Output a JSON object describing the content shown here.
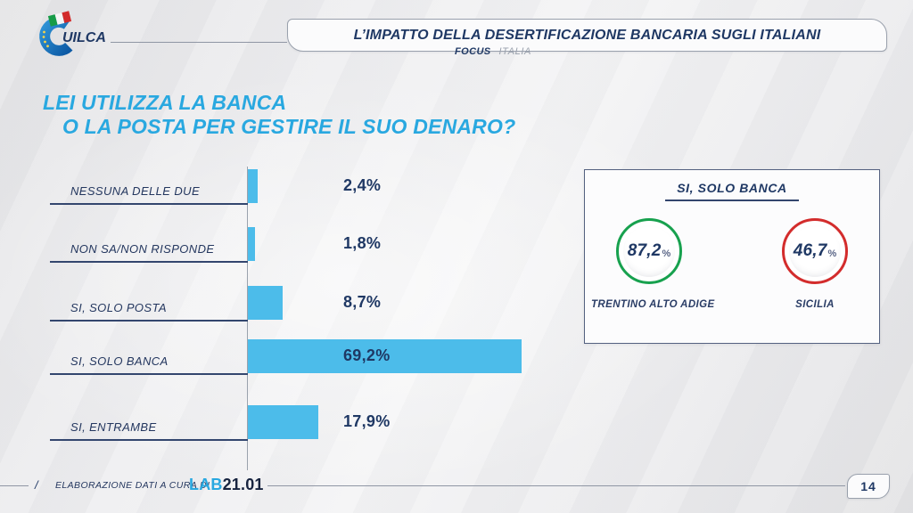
{
  "header": {
    "logo_text": "UILCA",
    "title": "L’IMPATTO DELLA DESERTIFICAZIONE BANCARIA SUGLI ITALIANI",
    "focus_label": "FOCUS",
    "focus_value": "ITALIA"
  },
  "chart_data": {
    "type": "bar",
    "orientation": "horizontal",
    "title_lines": [
      "LEI UTILIZZA LA BANCA",
      "O LA POSTA PER GESTIRE IL SUO DENARO?"
    ],
    "categories": [
      "NESSUNA DELLE DUE",
      "NON SA/NON RISPONDE",
      "SI, SOLO POSTA",
      "SI, SOLO BANCA",
      "SI, ENTRAMBE"
    ],
    "values": [
      2.4,
      1.8,
      8.7,
      69.2,
      17.9
    ],
    "value_labels": [
      "2,4%",
      "1,8%",
      "8,7%",
      "69,2%",
      "17,9%"
    ],
    "unit": "%",
    "xlim": [
      0,
      100
    ],
    "bar_color": "#4cbcea",
    "grid": false,
    "legend": false
  },
  "highlight": {
    "title": "SI, SOLO BANCA",
    "items": [
      {
        "value": "87,2",
        "unit": "%",
        "region": "TRENTINO ALTO ADIGE",
        "ring_color": "#17a14e"
      },
      {
        "value": "46,7",
        "unit": "%",
        "region": "SICILIA",
        "ring_color": "#d32c2c"
      }
    ]
  },
  "footer": {
    "slash": "/",
    "credit": "ELABORAZIONE DATI A CURA DI",
    "lab_blue": "LAB",
    "lab_dark": "21.01",
    "page_number": "14"
  },
  "colors": {
    "navy": "#1f3864",
    "light_blue": "#29a8e0",
    "bar_blue": "#4cbcea",
    "green": "#17a14e",
    "red": "#d32c2c",
    "line_grey": "#8f96a4"
  }
}
